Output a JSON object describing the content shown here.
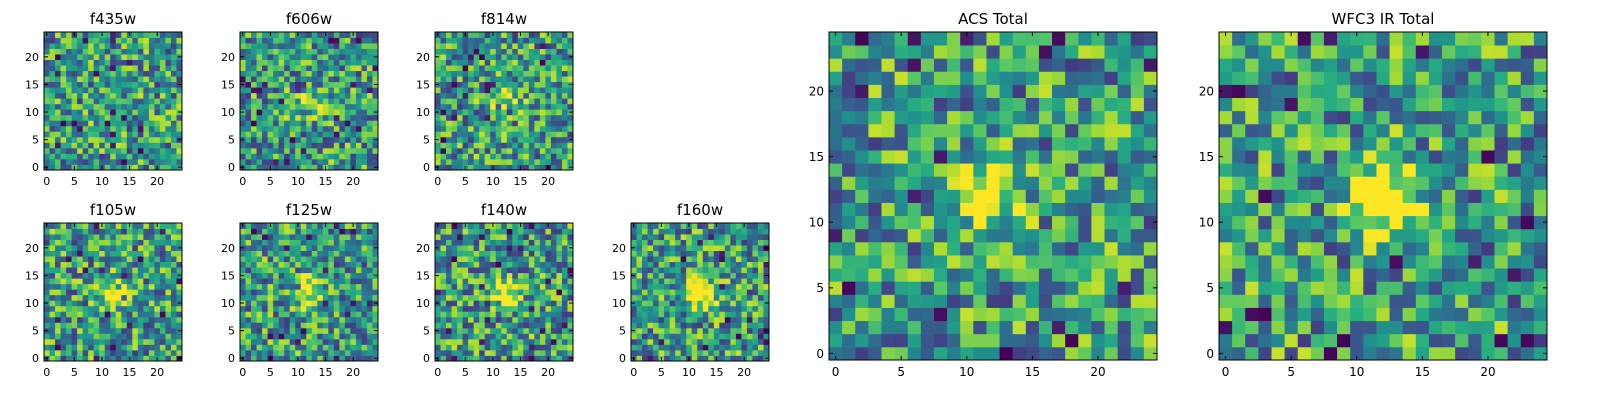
{
  "figure": {
    "description_colormap": "viridis",
    "colors": {
      "low": "#440154",
      "mid": "#21918c",
      "high": "#fde725"
    }
  },
  "chart_data": [
    {
      "type": "heatmap",
      "title": "f435w",
      "xlim": [
        0,
        24
      ],
      "ylim": [
        0,
        24
      ],
      "xticks": [
        0,
        5,
        10,
        15,
        20
      ],
      "yticks": [
        0,
        5,
        10,
        15,
        20
      ],
      "xlabel": "",
      "ylabel": "",
      "grid": false,
      "source_signal": "none",
      "seed": 11
    },
    {
      "type": "heatmap",
      "title": "f606w",
      "xlim": [
        0,
        24
      ],
      "ylim": [
        0,
        24
      ],
      "xticks": [
        0,
        5,
        10,
        15,
        20
      ],
      "yticks": [
        0,
        5,
        10,
        15,
        20
      ],
      "xlabel": "",
      "ylabel": "",
      "grid": false,
      "source_signal": "faint",
      "seed": 23
    },
    {
      "type": "heatmap",
      "title": "f814w",
      "xlim": [
        0,
        24
      ],
      "ylim": [
        0,
        24
      ],
      "xticks": [
        0,
        5,
        10,
        15,
        20
      ],
      "yticks": [
        0,
        5,
        10,
        15,
        20
      ],
      "xlabel": "",
      "ylabel": "",
      "grid": false,
      "source_signal": "faint",
      "seed": 37
    },
    {
      "type": "heatmap",
      "title": "f105w",
      "xlim": [
        0,
        24
      ],
      "ylim": [
        0,
        24
      ],
      "xticks": [
        0,
        5,
        10,
        15,
        20
      ],
      "yticks": [
        0,
        5,
        10,
        15,
        20
      ],
      "xlabel": "",
      "ylabel": "",
      "grid": false,
      "source_signal": "moderate",
      "seed": 41
    },
    {
      "type": "heatmap",
      "title": "f125w",
      "xlim": [
        0,
        24
      ],
      "ylim": [
        0,
        24
      ],
      "xticks": [
        0,
        5,
        10,
        15,
        20
      ],
      "yticks": [
        0,
        5,
        10,
        15,
        20
      ],
      "xlabel": "",
      "ylabel": "",
      "grid": false,
      "source_signal": "moderate",
      "seed": 53
    },
    {
      "type": "heatmap",
      "title": "f140w",
      "xlim": [
        0,
        24
      ],
      "ylim": [
        0,
        24
      ],
      "xticks": [
        0,
        5,
        10,
        15,
        20
      ],
      "yticks": [
        0,
        5,
        10,
        15,
        20
      ],
      "xlabel": "",
      "ylabel": "",
      "grid": false,
      "source_signal": "moderate",
      "seed": 67
    },
    {
      "type": "heatmap",
      "title": "f160w",
      "xlim": [
        0,
        24
      ],
      "ylim": [
        0,
        24
      ],
      "xticks": [
        0,
        5,
        10,
        15,
        20
      ],
      "yticks": [
        0,
        5,
        10,
        15,
        20
      ],
      "xlabel": "",
      "ylabel": "",
      "grid": false,
      "source_signal": "strong",
      "seed": 79
    },
    {
      "type": "heatmap",
      "title": "ACS Total",
      "xlim": [
        0,
        24
      ],
      "ylim": [
        0,
        24
      ],
      "xticks": [
        0,
        5,
        10,
        15,
        20
      ],
      "yticks": [
        0,
        5,
        10,
        15,
        20
      ],
      "xlabel": "",
      "ylabel": "",
      "grid": false,
      "source_signal": "moderate",
      "seed": 97
    },
    {
      "type": "heatmap",
      "title": "WFC3 IR Total",
      "xlim": [
        0,
        24
      ],
      "ylim": [
        0,
        24
      ],
      "xticks": [
        0,
        5,
        10,
        15,
        20
      ],
      "yticks": [
        0,
        5,
        10,
        15,
        20
      ],
      "xlabel": "",
      "ylabel": "",
      "grid": false,
      "source_signal": "strong",
      "seed": 113
    }
  ]
}
